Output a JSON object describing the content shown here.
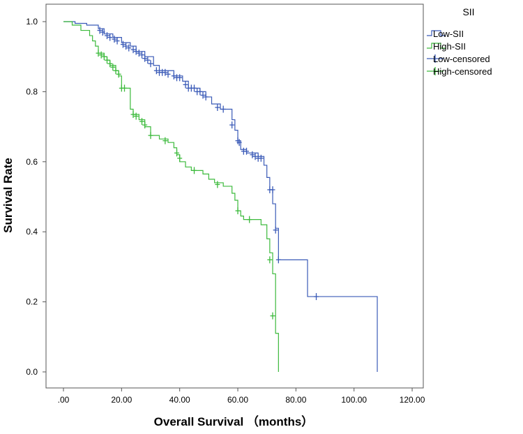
{
  "chart_data": {
    "type": "line",
    "subtype": "kaplan-meier",
    "xlabel": "Overall Survival （months）",
    "ylabel": "Survival Rate",
    "xlim": [
      0,
      120
    ],
    "ylim": [
      0,
      1.0
    ],
    "x_ticks": [
      ".00",
      "20.00",
      "40.00",
      "60.00",
      "80.00",
      "100.00",
      "120.00"
    ],
    "y_ticks": [
      "0.0",
      "0.2",
      "0.4",
      "0.6",
      "0.8",
      "1.0"
    ],
    "grid": false,
    "legend": {
      "title": "SII",
      "position": "right",
      "entries": [
        "Low-SII",
        "High-SII",
        "Low-censored",
        "High-censored"
      ]
    },
    "series": [
      {
        "name": "Low-SII",
        "color": "#3a5ab7",
        "steps": [
          [
            0,
            1.0
          ],
          [
            4,
            0.995
          ],
          [
            8,
            0.99
          ],
          [
            12,
            0.98
          ],
          [
            14,
            0.965
          ],
          [
            17,
            0.955
          ],
          [
            20,
            0.94
          ],
          [
            23,
            0.93
          ],
          [
            25,
            0.915
          ],
          [
            28,
            0.9
          ],
          [
            31,
            0.875
          ],
          [
            33,
            0.86
          ],
          [
            38,
            0.845
          ],
          [
            41,
            0.83
          ],
          [
            43,
            0.81
          ],
          [
            47,
            0.8
          ],
          [
            49,
            0.785
          ],
          [
            51,
            0.765
          ],
          [
            54,
            0.75
          ],
          [
            58,
            0.72
          ],
          [
            59,
            0.69
          ],
          [
            60,
            0.66
          ],
          [
            61,
            0.635
          ],
          [
            63,
            0.625
          ],
          [
            67,
            0.615
          ],
          [
            69,
            0.59
          ],
          [
            70,
            0.555
          ],
          [
            71,
            0.52
          ],
          [
            72,
            0.48
          ],
          [
            73,
            0.41
          ],
          [
            74,
            0.32
          ],
          [
            84,
            0.215
          ],
          [
            108,
            0.0
          ]
        ],
        "end_x": 108,
        "censored": [
          [
            12.5,
            0.975
          ],
          [
            13.5,
            0.97
          ],
          [
            15,
            0.96
          ],
          [
            16,
            0.955
          ],
          [
            17.5,
            0.95
          ],
          [
            18.5,
            0.945
          ],
          [
            20.5,
            0.935
          ],
          [
            21.5,
            0.93
          ],
          [
            22.5,
            0.925
          ],
          [
            24,
            0.92
          ],
          [
            25,
            0.915
          ],
          [
            26,
            0.91
          ],
          [
            27,
            0.905
          ],
          [
            28,
            0.895
          ],
          [
            29,
            0.89
          ],
          [
            30,
            0.88
          ],
          [
            32,
            0.86
          ],
          [
            33,
            0.855
          ],
          [
            34,
            0.855
          ],
          [
            35,
            0.855
          ],
          [
            36,
            0.85
          ],
          [
            38,
            0.845
          ],
          [
            39,
            0.84
          ],
          [
            40,
            0.84
          ],
          [
            42,
            0.82
          ],
          [
            43,
            0.81
          ],
          [
            44,
            0.81
          ],
          [
            45,
            0.81
          ],
          [
            46,
            0.8
          ],
          [
            47,
            0.8
          ],
          [
            48,
            0.79
          ],
          [
            49,
            0.785
          ],
          [
            53,
            0.755
          ],
          [
            55,
            0.75
          ],
          [
            58,
            0.705
          ],
          [
            60,
            0.66
          ],
          [
            60.5,
            0.655
          ],
          [
            62,
            0.63
          ],
          [
            63,
            0.63
          ],
          [
            65,
            0.62
          ],
          [
            66,
            0.615
          ],
          [
            67,
            0.61
          ],
          [
            68,
            0.61
          ],
          [
            71,
            0.52
          ],
          [
            72,
            0.52
          ],
          [
            73,
            0.405
          ],
          [
            74,
            0.32
          ],
          [
            87,
            0.215
          ]
        ]
      },
      {
        "name": "High-SII",
        "color": "#3cba3c",
        "steps": [
          [
            0,
            1.0
          ],
          [
            3,
            0.99
          ],
          [
            6,
            0.975
          ],
          [
            9,
            0.96
          ],
          [
            10,
            0.945
          ],
          [
            11,
            0.93
          ],
          [
            12,
            0.91
          ],
          [
            14,
            0.9
          ],
          [
            15,
            0.89
          ],
          [
            16,
            0.875
          ],
          [
            18,
            0.86
          ],
          [
            19,
            0.845
          ],
          [
            20,
            0.81
          ],
          [
            23,
            0.75
          ],
          [
            24,
            0.735
          ],
          [
            26,
            0.72
          ],
          [
            28,
            0.7
          ],
          [
            30,
            0.675
          ],
          [
            33,
            0.665
          ],
          [
            36,
            0.655
          ],
          [
            38,
            0.64
          ],
          [
            39,
            0.62
          ],
          [
            40,
            0.6
          ],
          [
            42,
            0.585
          ],
          [
            44,
            0.575
          ],
          [
            48,
            0.565
          ],
          [
            50,
            0.55
          ],
          [
            52,
            0.54
          ],
          [
            55,
            0.53
          ],
          [
            58,
            0.51
          ],
          [
            59,
            0.49
          ],
          [
            60,
            0.46
          ],
          [
            61,
            0.445
          ],
          [
            62,
            0.435
          ],
          [
            68,
            0.42
          ],
          [
            70,
            0.38
          ],
          [
            71,
            0.34
          ],
          [
            72,
            0.28
          ],
          [
            73,
            0.11
          ],
          [
            74,
            0.0
          ]
        ],
        "end_x": 74,
        "censored": [
          [
            12,
            0.91
          ],
          [
            13,
            0.905
          ],
          [
            14,
            0.9
          ],
          [
            15,
            0.89
          ],
          [
            16,
            0.88
          ],
          [
            17,
            0.87
          ],
          [
            18,
            0.86
          ],
          [
            19,
            0.85
          ],
          [
            20,
            0.81
          ],
          [
            21,
            0.81
          ],
          [
            24,
            0.735
          ],
          [
            25,
            0.73
          ],
          [
            27,
            0.715
          ],
          [
            28,
            0.705
          ],
          [
            30,
            0.675
          ],
          [
            35,
            0.66
          ],
          [
            39,
            0.625
          ],
          [
            40,
            0.61
          ],
          [
            45,
            0.575
          ],
          [
            53,
            0.535
          ],
          [
            60,
            0.46
          ],
          [
            64,
            0.435
          ],
          [
            71,
            0.32
          ],
          [
            72,
            0.16
          ]
        ]
      }
    ]
  }
}
